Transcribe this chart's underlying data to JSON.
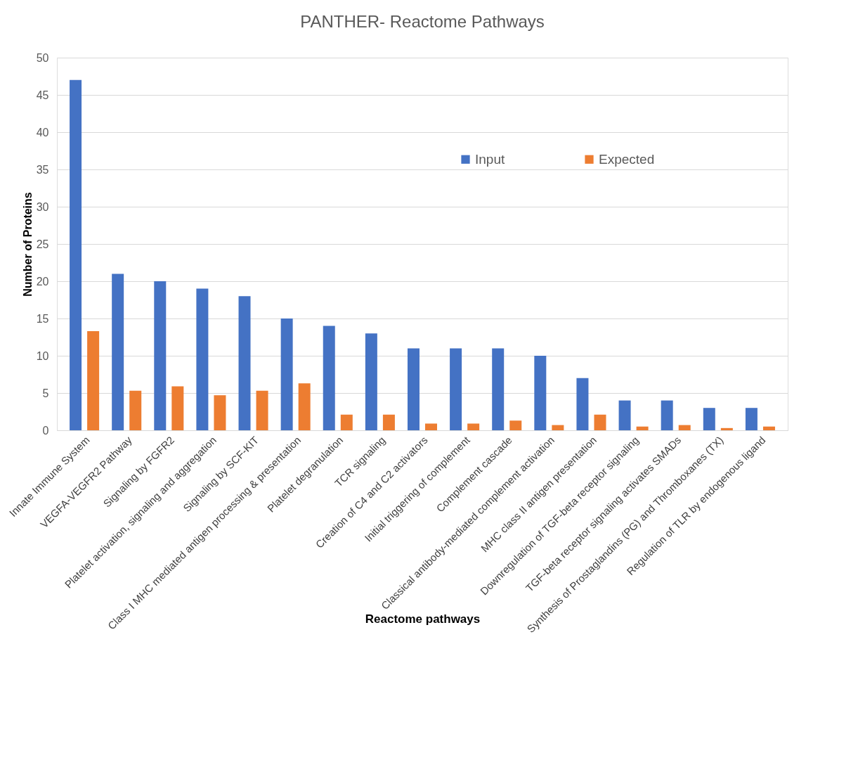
{
  "chart_data": {
    "type": "bar",
    "title": "PANTHER- Reactome Pathways",
    "xlabel": "Reactome pathways",
    "ylabel": "Number of Proteins",
    "categories": [
      "Innate Immune System",
      "VEGFA-VEGFR2 Pathway",
      "Signaling  by FGFR2",
      "Platelet activation, signaling and aggregation",
      "Signaling  by SCF-KIT",
      "Class I MHC mediated antigen processing & presentation",
      "Platelet degranulation",
      "TCR signaling",
      "Creation of C4 and C2 activators",
      "Initial triggering  of complement",
      "Complement cascade",
      "Classical antibody-mediated complement activation",
      "MHC class II antigen presentation",
      "Downregulation of TGF-beta receptor signaling",
      "TGF-beta receptor signaling activates SMADs",
      "Synthesis of Prostaglandins (PG) and Thromboxanes (TX)",
      "Regulation of TLR by endogenous ligand"
    ],
    "series": [
      {
        "name": "Input",
        "color": "#4472c4",
        "values": [
          47,
          21,
          20,
          19,
          18,
          15,
          14,
          13,
          11,
          11,
          11,
          10,
          7,
          4,
          4,
          3,
          3
        ]
      },
      {
        "name": "Expected",
        "color": "#ed7d31",
        "values": [
          13.3,
          5.3,
          5.9,
          4.7,
          5.3,
          6.3,
          2.1,
          2.1,
          0.9,
          0.9,
          1.3,
          0.7,
          2.1,
          0.5,
          0.7,
          0.3,
          0.5
        ]
      }
    ],
    "ylim": [
      0,
      50
    ],
    "yticks": [
      0,
      5,
      10,
      15,
      20,
      25,
      30,
      35,
      40,
      45,
      50
    ],
    "grid": "y",
    "legend": "top"
  }
}
